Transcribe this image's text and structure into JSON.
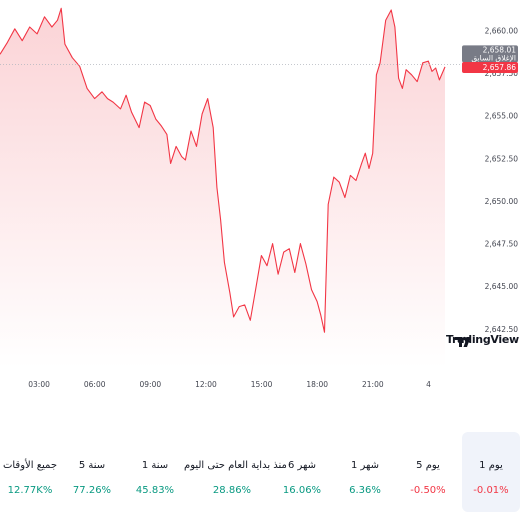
{
  "chart_data": {
    "type": "area",
    "x_tick_labels": [
      "21:00",
      "03:00",
      "06:00",
      "09:00",
      "12:00",
      "15:00",
      "18:00",
      "21:00",
      "4"
    ],
    "y_tick_labels": [
      "2,660.00",
      "2,657.50",
      "2,655.00",
      "2,652.50",
      "2,650.00",
      "2,647.50",
      "2,645.00",
      "2,642.50"
    ],
    "y_ticks": [
      2660.0,
      2657.5,
      2655.0,
      2652.5,
      2650.0,
      2647.5,
      2645.0,
      2642.5
    ],
    "ylim": [
      2640.2,
      2661.2
    ],
    "x_hours": [
      0,
      24
    ],
    "series": [
      {
        "values": [
          [
            0.0,
            2658.6
          ],
          [
            0.4,
            2659.3
          ],
          [
            0.8,
            2660.1
          ],
          [
            1.2,
            2659.4
          ],
          [
            1.6,
            2660.2
          ],
          [
            2.0,
            2659.8
          ],
          [
            2.4,
            2660.8
          ],
          [
            2.8,
            2660.2
          ],
          [
            3.1,
            2660.6
          ],
          [
            3.3,
            2661.3
          ],
          [
            3.5,
            2659.2
          ],
          [
            3.9,
            2658.4
          ],
          [
            4.3,
            2657.9
          ],
          [
            4.7,
            2656.6
          ],
          [
            5.1,
            2656.0
          ],
          [
            5.5,
            2656.4
          ],
          [
            5.8,
            2656.0
          ],
          [
            6.1,
            2655.8
          ],
          [
            6.5,
            2655.4
          ],
          [
            6.8,
            2656.2
          ],
          [
            7.1,
            2655.2
          ],
          [
            7.5,
            2654.3
          ],
          [
            7.8,
            2655.8
          ],
          [
            8.1,
            2655.6
          ],
          [
            8.4,
            2654.8
          ],
          [
            8.7,
            2654.4
          ],
          [
            9.0,
            2653.9
          ],
          [
            9.2,
            2652.2
          ],
          [
            9.5,
            2653.2
          ],
          [
            9.8,
            2652.6
          ],
          [
            10.0,
            2652.4
          ],
          [
            10.3,
            2654.1
          ],
          [
            10.6,
            2653.2
          ],
          [
            10.9,
            2655.1
          ],
          [
            11.2,
            2656.0
          ],
          [
            11.5,
            2654.3
          ],
          [
            11.7,
            2650.8
          ],
          [
            11.9,
            2648.9
          ],
          [
            12.1,
            2646.4
          ],
          [
            12.4,
            2644.6
          ],
          [
            12.6,
            2643.2
          ],
          [
            12.9,
            2643.8
          ],
          [
            13.2,
            2643.9
          ],
          [
            13.5,
            2643.0
          ],
          [
            13.8,
            2644.9
          ],
          [
            14.1,
            2646.8
          ],
          [
            14.4,
            2646.2
          ],
          [
            14.7,
            2647.5
          ],
          [
            15.0,
            2645.7
          ],
          [
            15.3,
            2647.0
          ],
          [
            15.6,
            2647.2
          ],
          [
            15.9,
            2645.8
          ],
          [
            16.2,
            2647.5
          ],
          [
            16.5,
            2646.3
          ],
          [
            16.8,
            2644.8
          ],
          [
            17.1,
            2644.1
          ],
          [
            17.3,
            2643.3
          ],
          [
            17.5,
            2642.3
          ],
          [
            17.7,
            2649.8
          ],
          [
            18.0,
            2651.4
          ],
          [
            18.3,
            2651.1
          ],
          [
            18.6,
            2650.2
          ],
          [
            18.9,
            2651.5
          ],
          [
            19.2,
            2651.2
          ],
          [
            19.5,
            2652.2
          ],
          [
            19.7,
            2652.8
          ],
          [
            19.9,
            2651.9
          ],
          [
            20.1,
            2652.8
          ],
          [
            20.3,
            2657.4
          ],
          [
            20.5,
            2658.1
          ],
          [
            20.8,
            2660.6
          ],
          [
            21.1,
            2661.2
          ],
          [
            21.3,
            2660.2
          ],
          [
            21.5,
            2657.2
          ],
          [
            21.7,
            2656.6
          ],
          [
            21.9,
            2657.7
          ],
          [
            22.2,
            2657.4
          ],
          [
            22.5,
            2657.0
          ],
          [
            22.8,
            2658.1
          ],
          [
            23.1,
            2658.2
          ],
          [
            23.3,
            2657.6
          ],
          [
            23.5,
            2657.8
          ],
          [
            23.7,
            2657.1
          ],
          [
            24.0,
            2657.86
          ]
        ]
      }
    ],
    "x_tick_positions": [
      -1,
      2,
      5,
      8,
      11,
      14,
      17,
      20,
      23
    ],
    "prev_close": 2658.01,
    "current_price": 2657.86,
    "prev_close_value_label": "2,658.01",
    "prev_close_text_label": "الإغلاق السابق",
    "current_price_label": "2,657.86",
    "grid": false,
    "legend": "none",
    "colors": {
      "line": "#f23645",
      "fill_top": "#fbd3d6",
      "fill_bottom": "#ffffff",
      "prev_close_bg": "#787b86",
      "current_bg": "#f23645"
    }
  },
  "brand": "TradingView",
  "periods": [
    {
      "label": "جميع الأوقات",
      "value": "12.77K%",
      "trend": "pos"
    },
    {
      "label": "5 سنة",
      "value": "77.26%",
      "trend": "pos"
    },
    {
      "label": "1 سنة",
      "value": "45.83%",
      "trend": "pos"
    },
    {
      "label": "منذ بداية العام حتى اليوم",
      "value": "28.86%",
      "trend": "pos"
    },
    {
      "label": "6 شهر",
      "value": "16.06%",
      "trend": "pos"
    },
    {
      "label": "1 شهر",
      "value": "6.36%",
      "trend": "pos"
    },
    {
      "label": "5 يوم",
      "value": "-0.50%",
      "trend": "neg"
    },
    {
      "label": "1 يوم",
      "value": "-0.01%",
      "trend": "neg",
      "selected": true
    }
  ]
}
